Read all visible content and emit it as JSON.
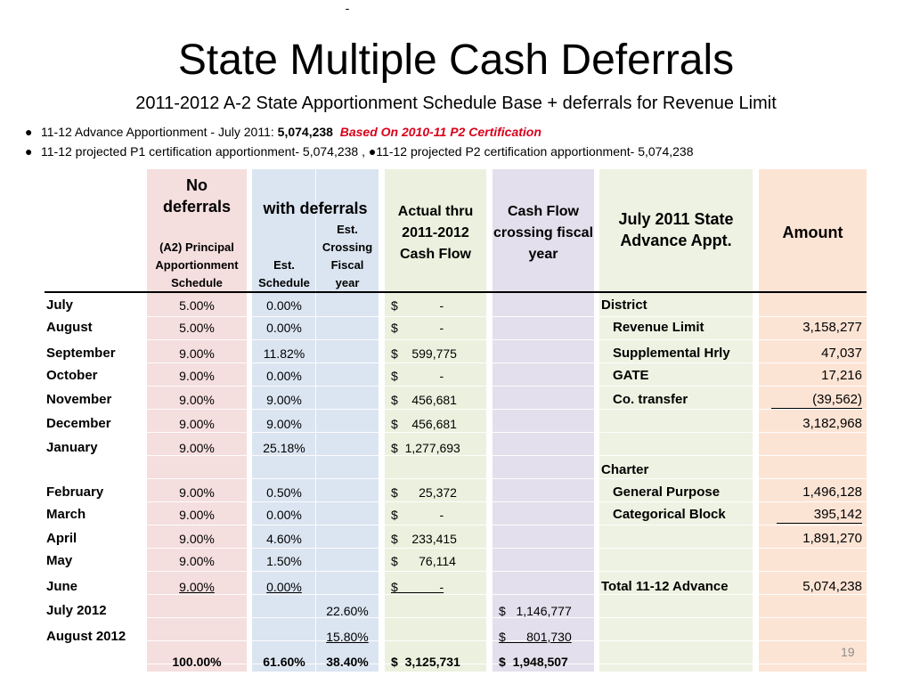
{
  "title": "State Multiple Cash Deferrals",
  "subtitle": "2011-2012 A-2 State Apportionment Schedule Base + deferrals for Revenue Limit",
  "bullets": {
    "b1_text": "11-12 Advance Apportionment - July 2011: ",
    "b1_amount": "5,074,238",
    "b1_note": "Based On 2010-11 P2 Certification",
    "b2_text": "11-12 projected P1 certification apportionment- 5,074,238 , ●11-12 projected P2 certification apportionment- 5,074,238",
    "bullet_char": "●"
  },
  "headers": {
    "no_def_1": "No",
    "no_def_2": "deferrals",
    "no_def_sub": "(A2) Principal Apportionment Schedule",
    "with_def": "with deferrals",
    "est_schedule": "Est. Schedule",
    "est_crossing": "Est. Crossing Fiscal year",
    "actual": "Actual thru 2011-2012 Cash Flow",
    "cash_flow": "Cash Flow crossing fiscal year",
    "advance": "July 2011 State Advance Appt.",
    "amount": "Amount"
  },
  "rows": [
    {
      "month": "July",
      "no_def": "5.00%",
      "est": "0.00%",
      "crossing": "",
      "actual": "$            -",
      "cf": ""
    },
    {
      "month": "August",
      "no_def": "5.00%",
      "est": "0.00%",
      "crossing": "",
      "actual": "$            -",
      "cf": ""
    },
    {
      "month": "September",
      "no_def": "9.00%",
      "est": "11.82%",
      "crossing": "",
      "actual": "$    599,775",
      "cf": ""
    },
    {
      "month": "October",
      "no_def": "9.00%",
      "est": "0.00%",
      "crossing": "",
      "actual": "$            -",
      "cf": ""
    },
    {
      "month": "November",
      "no_def": "9.00%",
      "est": "9.00%",
      "crossing": "",
      "actual": "$    456,681",
      "cf": ""
    },
    {
      "month": "December",
      "no_def": "9.00%",
      "est": "9.00%",
      "crossing": "",
      "actual": "$    456,681",
      "cf": ""
    },
    {
      "month": "January",
      "no_def": "9.00%",
      "est": "25.18%",
      "crossing": "",
      "actual": "$  1,277,693",
      "cf": ""
    },
    {
      "month": "February",
      "no_def": "9.00%",
      "est": "0.50%",
      "crossing": "",
      "actual": "$      25,372",
      "cf": ""
    },
    {
      "month": "March",
      "no_def": "9.00%",
      "est": "0.00%",
      "crossing": "",
      "actual": "$            -",
      "cf": ""
    },
    {
      "month": "April",
      "no_def": "9.00%",
      "est": "4.60%",
      "crossing": "",
      "actual": "$    233,415",
      "cf": ""
    },
    {
      "month": "May",
      "no_def": "9.00%",
      "est": "1.50%",
      "crossing": "",
      "actual": "$      76,114",
      "cf": ""
    },
    {
      "month": "June",
      "no_def": "9.00%",
      "est": "0.00%",
      "crossing": "-",
      "actual": "$            -",
      "cf": ""
    },
    {
      "month": "July 2012",
      "no_def": "",
      "est": "",
      "crossing": "22.60%",
      "actual": "",
      "cf": "$   1,146,777"
    },
    {
      "month": "August 2012",
      "no_def": "",
      "est": "",
      "crossing": "15.80%",
      "actual": "",
      "cf": "$      801,730"
    }
  ],
  "totals": {
    "no_def": "100.00%",
    "est": "61.60%",
    "crossing": "38.40%",
    "actual": "$  3,125,731",
    "cf": "$  1,948,507"
  },
  "advance": {
    "district": "District",
    "revenue_limit": "Revenue Limit",
    "revenue_limit_amt": "3,158,277",
    "supp_hrly": "Supplemental Hrly",
    "supp_hrly_amt": "47,037",
    "gate": "GATE",
    "gate_amt": "17,216",
    "co_transfer": "Co. transfer",
    "co_transfer_amt": "(39,562)",
    "district_total": "3,182,968",
    "charter": "Charter",
    "general_purpose": "General Purpose",
    "general_purpose_amt": "1,496,128",
    "categorical": "Categorical Block",
    "categorical_amt": "395,142",
    "charter_total": "1,891,270",
    "total_label": "Total 11-12 Advance",
    "total_amt": "5,074,238"
  },
  "page_number": "19"
}
